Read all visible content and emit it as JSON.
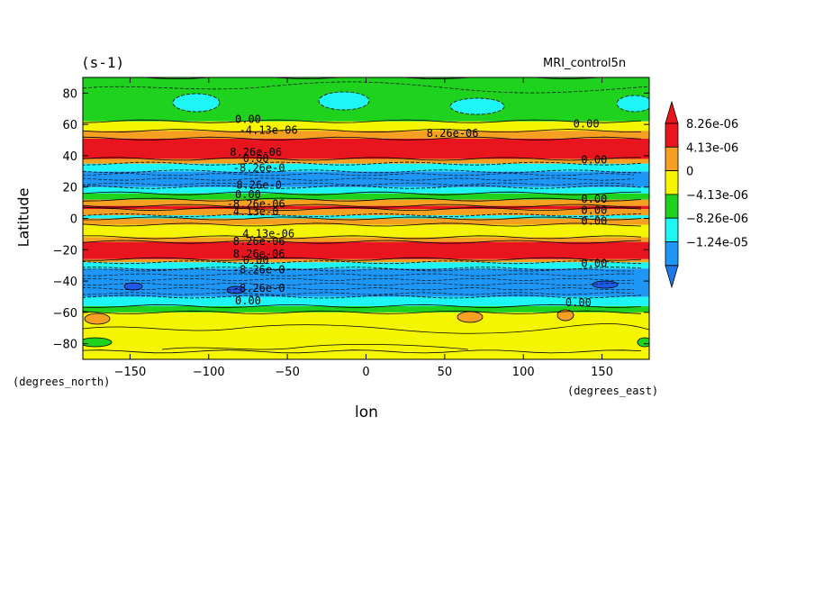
{
  "chart_data": {
    "type": "heatmap",
    "title": "(s-1)",
    "model": "MRI_control5n",
    "xlabel": "lon",
    "ylabel": "Latitude",
    "xunits": "(degrees_east)",
    "yunits": "(degrees_north)",
    "xlim": [
      -180,
      180
    ],
    "ylim": [
      -90,
      90
    ],
    "xticks": [
      -150,
      -100,
      -50,
      0,
      50,
      100,
      150
    ],
    "yticks": [
      -80,
      -60,
      -40,
      -20,
      0,
      20,
      40,
      60,
      80
    ],
    "legend_placement": "right",
    "colorbar": {
      "labels": [
        "8.26e-06",
        "4.13e-06",
        "0",
        "-4.13e-06",
        "-8.26e-06",
        "-1.24e-05"
      ],
      "colors": [
        "#e8141e",
        "#f5a020",
        "#f5f500",
        "#1ed21e",
        "#1ef5f5",
        "#1e96f5"
      ],
      "top_triangle": "#e8141e",
      "bottom_triangle": "#1e78e8"
    },
    "zonal_bands": [
      {
        "lat_from": -90,
        "lat_to": -85,
        "color": "#f5f500"
      },
      {
        "lat_from": -85,
        "lat_to": -60,
        "color": "#f5f500"
      },
      {
        "lat_from": -60,
        "lat_to": -56,
        "color": "#1ed21e"
      },
      {
        "lat_from": -56,
        "lat_to": -50,
        "color": "#1ef5f5"
      },
      {
        "lat_from": -50,
        "lat_to": -32,
        "color": "#1e96f5"
      },
      {
        "lat_from": -32,
        "lat_to": -28,
        "color": "#1ef5f5"
      },
      {
        "lat_from": -28,
        "lat_to": -26,
        "color": "#f5a020"
      },
      {
        "lat_from": -26,
        "lat_to": -15,
        "color": "#e8141e"
      },
      {
        "lat_from": -15,
        "lat_to": -12,
        "color": "#f5a020"
      },
      {
        "lat_from": -12,
        "lat_to": -4,
        "color": "#f5f500"
      },
      {
        "lat_from": -4,
        "lat_to": 0,
        "color": "#f5a020"
      },
      {
        "lat_from": 0,
        "lat_to": 2,
        "color": "#1ef5f5"
      },
      {
        "lat_from": 2,
        "lat_to": 6,
        "color": "#f5a020"
      },
      {
        "lat_from": 6,
        "lat_to": 8,
        "color": "#e8141e"
      },
      {
        "lat_from": 8,
        "lat_to": 12,
        "color": "#f5a020"
      },
      {
        "lat_from": 12,
        "lat_to": 16,
        "color": "#1ed21e"
      },
      {
        "lat_from": 16,
        "lat_to": 20,
        "color": "#1ef5f5"
      },
      {
        "lat_from": 20,
        "lat_to": 30,
        "color": "#1e96f5"
      },
      {
        "lat_from": 30,
        "lat_to": 35,
        "color": "#1ef5f5"
      },
      {
        "lat_from": 35,
        "lat_to": 38,
        "color": "#f5a020"
      },
      {
        "lat_from": 38,
        "lat_to": 51,
        "color": "#e8141e"
      },
      {
        "lat_from": 51,
        "lat_to": 56,
        "color": "#f5a020"
      },
      {
        "lat_from": 56,
        "lat_to": 62,
        "color": "#f5f500"
      },
      {
        "lat_from": 62,
        "lat_to": 90,
        "color": "#1ed21e"
      }
    ],
    "contour_labels": [
      {
        "text": "0.00",
        "lon": -75,
        "lat": 61
      },
      {
        "text": "-4.13e-06",
        "lon": -62,
        "lat": 54
      },
      {
        "text": "8.26e-06",
        "lon": 55,
        "lat": 52
      },
      {
        "text": "0.00",
        "lon": 140,
        "lat": 58
      },
      {
        "text": "8.26e-06",
        "lon": -70,
        "lat": 40
      },
      {
        "text": "0.00",
        "lon": -70,
        "lat": 36
      },
      {
        "text": "-8.26e-0",
        "lon": -68,
        "lat": 30
      },
      {
        "text": "0.00",
        "lon": 145,
        "lat": 35
      },
      {
        "text": "8.26e-0",
        "lon": -68,
        "lat": 19
      },
      {
        "text": "0.00",
        "lon": -75,
        "lat": 13
      },
      {
        "text": "-8.26e-06",
        "lon": -70,
        "lat": 7
      },
      {
        "text": "4.13e-0",
        "lon": -70,
        "lat": 2
      },
      {
        "text": "0.00",
        "lon": 145,
        "lat": 10
      },
      {
        "text": "0.00",
        "lon": 145,
        "lat": 3
      },
      {
        "text": "0.00",
        "lon": 145,
        "lat": -4
      },
      {
        "text": "4.13e-06",
        "lon": -62,
        "lat": -12
      },
      {
        "text": "8.26e-06",
        "lon": -68,
        "lat": -17
      },
      {
        "text": "8.26e-06",
        "lon": -68,
        "lat": -25
      },
      {
        "text": "0.00",
        "lon": -70,
        "lat": -29
      },
      {
        "text": "-8.26e-0",
        "lon": -68,
        "lat": -35
      },
      {
        "text": "0.00",
        "lon": 145,
        "lat": -31
      },
      {
        "text": "-8.26e-0",
        "lon": -68,
        "lat": -47
      },
      {
        "text": "0.00",
        "lon": -75,
        "lat": -55
      },
      {
        "text": "0.00",
        "lon": 135,
        "lat": -56
      }
    ]
  }
}
